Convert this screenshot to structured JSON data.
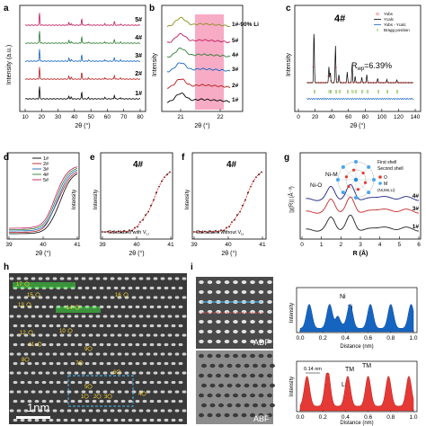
{
  "panels": {
    "a": {
      "label": "a",
      "ylabel": "Intensity (a.u.)",
      "xlabel": "2θ (°)",
      "x_ticks": [
        "10",
        "20",
        "30",
        "40",
        "50",
        "60",
        "70",
        "80"
      ],
      "series_labels": [
        "5#",
        "4#",
        "3#",
        "2#",
        "1#"
      ],
      "colors": [
        "#c2185b",
        "#2e7d32",
        "#1565c0",
        "#b71c1c",
        "#000000"
      ]
    },
    "b": {
      "label": "b",
      "ylabel": "Intensity",
      "xlabel": "2θ (°)",
      "x_ticks": [
        "21",
        "22"
      ],
      "series_labels": [
        "1#-90% Li",
        "5#",
        "4#",
        "3#",
        "2#",
        "1#"
      ],
      "colors": [
        "#8d8d20",
        "#c2185b",
        "#2e7d32",
        "#1565c0",
        "#b71c1c",
        "#000000"
      ],
      "highlight_color": "#f48fb1"
    },
    "c": {
      "label": "c",
      "title": "4#",
      "ylabel": "Intensity",
      "xlabel": "2θ (°)",
      "x_ticks": [
        "0",
        "20",
        "40",
        "60",
        "80",
        "100",
        "120",
        "140"
      ],
      "legend": [
        "Yobs",
        "Ycalc",
        "Yobs - Ycalc",
        "Bragg position"
      ],
      "rwp": "R",
      "rwp_sub": "wp",
      "rwp_value": "=6.39%"
    },
    "d": {
      "label": "d",
      "ylabel": "Intensity",
      "xlabel": "2θ (°)",
      "x_ticks": [
        "39",
        "40",
        "41"
      ],
      "legend": [
        "1#",
        "2#",
        "3#",
        "4#",
        "5#"
      ],
      "colors": [
        "#000000",
        "#b71c1c",
        "#1565c0",
        "#2e7d32",
        "#c2185b"
      ]
    },
    "e": {
      "label": "e",
      "title": "4#",
      "ylabel": "Intensity",
      "xlabel": "2θ (°)",
      "x_ticks": [
        "39",
        "40",
        "41"
      ],
      "note": "Calculated with V",
      "note_sub": "Li"
    },
    "f": {
      "label": "f",
      "title": "4#",
      "ylabel": "Intensity",
      "xlabel": "2θ (°)",
      "x_ticks": [
        "39",
        "40",
        "41"
      ],
      "note": "Calculated without V",
      "note_sub": "Li"
    },
    "g": {
      "label": "g",
      "ylabel": "|χ(R)| (Å⁻³)",
      "xlabel": "R (Å)",
      "x_ticks": [
        "0",
        "1",
        "2",
        "3",
        "4",
        "5",
        "6"
      ],
      "peak_labels": [
        "Ni-O",
        "Ni-M"
      ],
      "series_labels": [
        "4#",
        "3#",
        "1#"
      ],
      "colors": [
        "#1a237e",
        "#c62828",
        "#212121"
      ],
      "inset": [
        "First shell",
        "Second shell",
        "O",
        "M",
        "(Ni,Mn,Li)"
      ]
    },
    "h": {
      "label": "h",
      "scale_bar": "1nm",
      "atom_labels": [
        "17",
        "15",
        "13",
        "14",
        "16",
        "12",
        "11",
        "10",
        "9",
        "8",
        "7",
        "6",
        "5",
        "4",
        "3",
        "2",
        "1"
      ]
    },
    "i": {
      "label": "i",
      "adf": "ADF",
      "abf": "ABF",
      "top": {
        "ylabel": "Intensity",
        "xlabel": "Distance (nm)",
        "labels": [
          "Ni",
          "Li"
        ],
        "x_ticks": [
          "0.0",
          "0.2",
          "0.4",
          "0.6",
          "0.8",
          "1.0"
        ]
      },
      "bottom": {
        "ylabel": "Intensity",
        "xlabel": "Distance (nm)",
        "labels": [
          "0.14 nm",
          "TM",
          "TM",
          "Li"
        ],
        "x_ticks": [
          "0.0",
          "0.2",
          "0.4",
          "0.6",
          "0.8",
          "1.0"
        ]
      }
    }
  }
}
